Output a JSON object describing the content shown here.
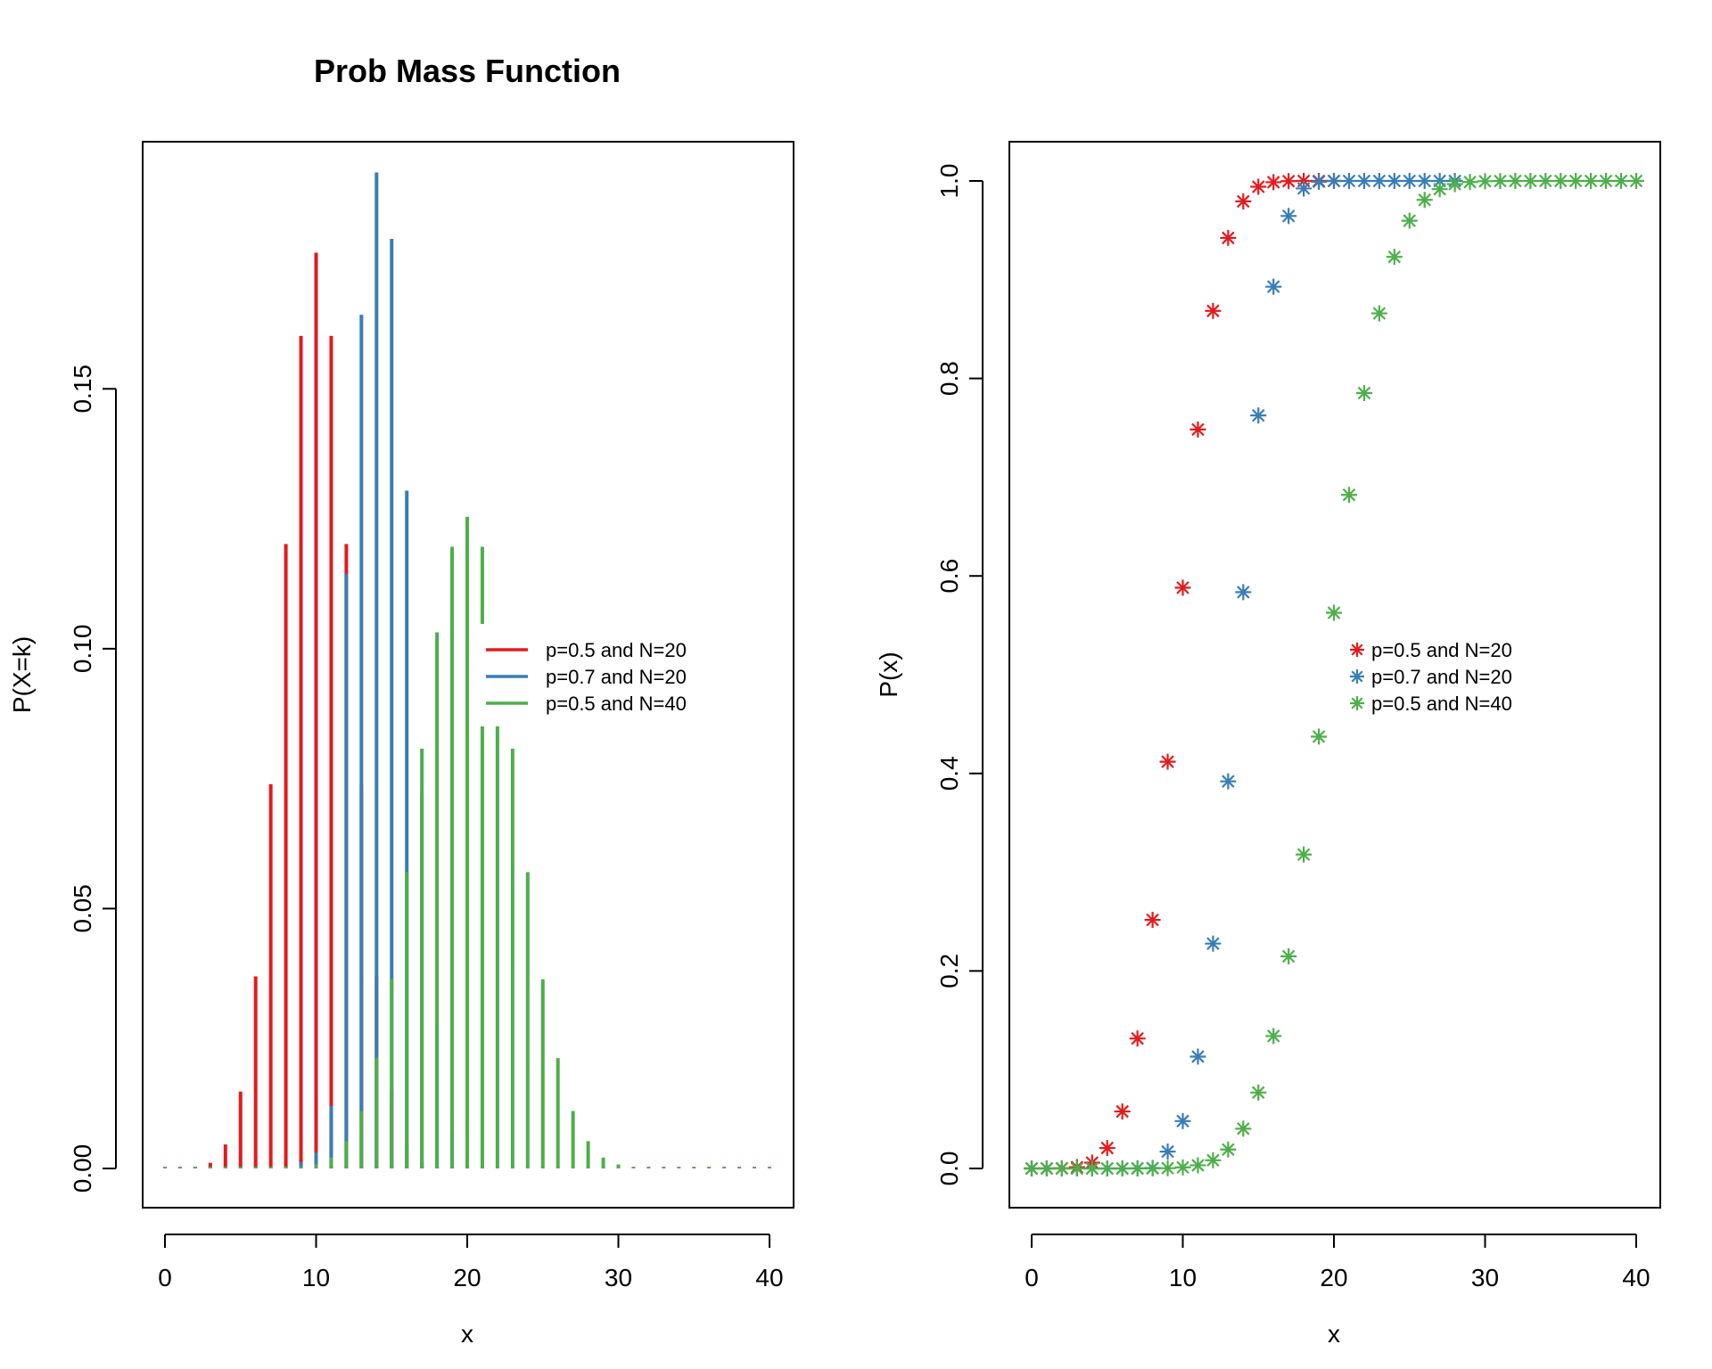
{
  "colors": {
    "red": "#E41A1C",
    "blue": "#377EB8",
    "green": "#4DAF4A",
    "axis": "#000000",
    "background": "#ffffff"
  },
  "chart_data": [
    {
      "type": "bar",
      "style": "vertical-lines",
      "title": "Prob Mass Function",
      "xlabel": "x",
      "ylabel": "P(X=k)",
      "xlim": [
        0,
        40
      ],
      "ylim": [
        0,
        0.19
      ],
      "xticks": [
        0,
        10,
        20,
        30,
        40
      ],
      "xtick_labels": [
        "0",
        "10",
        "20",
        "30",
        "40"
      ],
      "yticks": [
        0,
        0.05,
        0.1,
        0.15
      ],
      "ytick_labels": [
        "0.00",
        "0.05",
        "0.10",
        "0.15"
      ],
      "grid": false,
      "legend_position": "right",
      "series": [
        {
          "name": "p=0.5 and N=20",
          "color": "red",
          "x": [
            0,
            1,
            2,
            3,
            4,
            5,
            6,
            7,
            8,
            9,
            10,
            11,
            12,
            13,
            14,
            15,
            16,
            17,
            18,
            19,
            20
          ],
          "values": [
            1e-06,
            1.9e-05,
            0.000181,
            0.001087,
            0.004621,
            0.014786,
            0.036964,
            0.073929,
            0.120134,
            0.160179,
            0.176197,
            0.160179,
            0.120134,
            0.073929,
            0.036964,
            0.014786,
            0.004621,
            0.001087,
            0.000181,
            1.9e-05,
            1e-06
          ]
        },
        {
          "name": "p=0.7 and N=20",
          "color": "blue",
          "x": [
            0,
            1,
            2,
            3,
            4,
            5,
            6,
            7,
            8,
            9,
            10,
            11,
            12,
            13,
            14,
            15,
            16,
            17,
            18,
            19,
            20
          ],
          "values": [
            0,
            0,
            0,
            0,
            0,
            4e-06,
            2.2e-05,
            0.000102,
            0.000386,
            0.001201,
            0.003082,
            0.012007,
            0.114397,
            0.164262,
            0.191639,
            0.178863,
            0.130421,
            0.071604,
            0.027846,
            0.006839,
            0.000798
          ]
        },
        {
          "name": "p=0.5 and N=40",
          "color": "green",
          "x": [
            0,
            1,
            2,
            3,
            4,
            5,
            6,
            7,
            8,
            9,
            10,
            11,
            12,
            13,
            14,
            15,
            16,
            17,
            18,
            19,
            20,
            21,
            22,
            23,
            24,
            25,
            26,
            27,
            28,
            29,
            30,
            31,
            32,
            33,
            34,
            35,
            36,
            37,
            38,
            39,
            40
          ],
          "values": [
            0,
            0,
            0,
            0,
            0,
            0,
            0,
            1.7e-05,
            6.9e-05,
            0.000246,
            0.000771,
            0.002102,
            0.005256,
            0.01105,
            0.021235,
            0.036397,
            0.057007,
            0.080772,
            0.103139,
            0.1196,
            0.125371,
            0.1196,
            0.103139,
            0.080772,
            0.057007,
            0.036397,
            0.021235,
            0.01105,
            0.005256,
            0.002102,
            0.000771,
            0.000246,
            6.9e-05,
            1.7e-05,
            0,
            0,
            0,
            0,
            0,
            0,
            0
          ]
        }
      ]
    },
    {
      "type": "scatter",
      "marker": "asterisk",
      "title": "",
      "xlabel": "x",
      "ylabel": "P(x)",
      "xlim": [
        0,
        40
      ],
      "ylim": [
        0,
        1
      ],
      "xticks": [
        0,
        10,
        20,
        30,
        40
      ],
      "xtick_labels": [
        "0",
        "10",
        "20",
        "30",
        "40"
      ],
      "yticks": [
        0,
        0.2,
        0.4,
        0.6,
        0.8,
        1.0
      ],
      "ytick_labels": [
        "0.0",
        "0.2",
        "0.4",
        "0.6",
        "0.8",
        "1.0"
      ],
      "grid": false,
      "legend_position": "right",
      "series": [
        {
          "name": "p=0.5 and N=20",
          "color": "red",
          "x": [
            0,
            1,
            2,
            3,
            4,
            5,
            6,
            7,
            8,
            9,
            10,
            11,
            12,
            13,
            14,
            15,
            16,
            17,
            18,
            19,
            20
          ],
          "values": [
            1e-06,
            2e-05,
            0.0002,
            0.0013,
            0.0059,
            0.0207,
            0.0577,
            0.1316,
            0.2517,
            0.4119,
            0.5881,
            0.7483,
            0.8684,
            0.9423,
            0.9793,
            0.9941,
            0.9987,
            0.9998,
            1.0,
            1.0,
            1.0
          ]
        },
        {
          "name": "p=0.7 and N=20",
          "color": "blue",
          "x": [
            0,
            1,
            2,
            3,
            4,
            5,
            6,
            7,
            8,
            9,
            10,
            11,
            12,
            13,
            14,
            15,
            16,
            17,
            18,
            19,
            20,
            21,
            22,
            23,
            24,
            25,
            26,
            27,
            28
          ],
          "values": [
            0,
            0,
            0,
            0,
            0,
            1e-05,
            3e-05,
            0.0001,
            0.0005,
            0.0171,
            0.048,
            0.1133,
            0.2277,
            0.392,
            0.5836,
            0.7625,
            0.8929,
            0.9645,
            0.9924,
            0.9992,
            1.0,
            1.0,
            1.0,
            1.0,
            1.0,
            1.0,
            1.0,
            1.0,
            1.0
          ]
        },
        {
          "name": "p=0.5 and N=40",
          "color": "green",
          "x": [
            0,
            1,
            2,
            3,
            4,
            5,
            6,
            7,
            8,
            9,
            10,
            11,
            12,
            13,
            14,
            15,
            16,
            17,
            18,
            19,
            20,
            21,
            22,
            23,
            24,
            25,
            26,
            27,
            28,
            29,
            30,
            31,
            32,
            33,
            34,
            35,
            36,
            37,
            38,
            39,
            40
          ],
          "values": [
            0,
            0,
            0,
            0,
            0,
            0,
            0,
            0,
            0.0001,
            0.0003,
            0.0011,
            0.0032,
            0.0083,
            0.0192,
            0.0403,
            0.0769,
            0.1341,
            0.2148,
            0.3179,
            0.4373,
            0.5627,
            0.6821,
            0.7852,
            0.8659,
            0.9231,
            0.9597,
            0.9808,
            0.9917,
            0.9968,
            0.9989,
            0.9997,
            0.9999,
            1.0,
            1.0,
            1.0,
            1.0,
            1.0,
            1.0,
            1.0,
            1.0,
            1.0
          ]
        }
      ]
    }
  ]
}
